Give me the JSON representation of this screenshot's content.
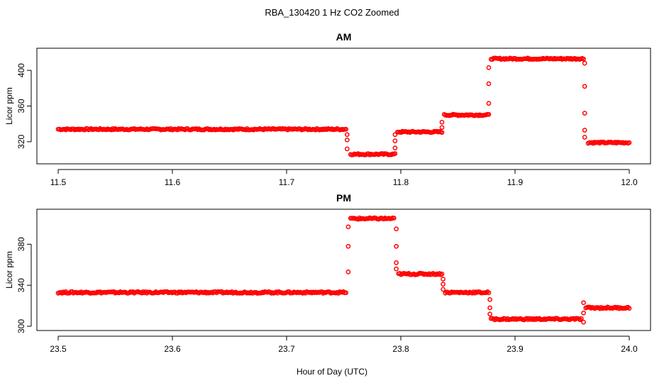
{
  "figure": {
    "title": "RBA_130420  1 Hz CO2 Zoomed",
    "xlabel": "Hour of Day (UTC)"
  },
  "chart_data": [
    {
      "type": "scatter",
      "title": "AM",
      "xlabel": "",
      "ylabel": "Licor ppm",
      "marker": "open-circle",
      "color": "#ff0000",
      "xlim": [
        11.5,
        12.0
      ],
      "ylim": [
        300,
        420
      ],
      "xticks": [
        11.5,
        11.6,
        11.7,
        11.8,
        11.9,
        12.0
      ],
      "xtick_labels": [
        "11.5",
        "11.6",
        "11.7",
        "11.8",
        "11.9",
        "12.0"
      ],
      "yticks": [
        320,
        360,
        400
      ],
      "ytick_labels": [
        "320",
        "360",
        "400"
      ],
      "levels": [
        {
          "x_start": 11.5,
          "x_end": 11.752,
          "y": 334
        },
        {
          "x_start": 11.756,
          "x_end": 11.795,
          "y": 306
        },
        {
          "x_start": 11.797,
          "x_end": 11.836,
          "y": 331
        },
        {
          "x_start": 11.838,
          "x_end": 11.877,
          "y": 350
        },
        {
          "x_start": 11.879,
          "x_end": 11.96,
          "y": 413
        },
        {
          "x_start": 11.964,
          "x_end": 12.0,
          "y": 319
        }
      ],
      "transitions": [
        {
          "x": 11.753,
          "y": [
            328,
            322,
            312
          ]
        },
        {
          "x": 11.795,
          "y": [
            313,
            321,
            328
          ]
        },
        {
          "x": 11.836,
          "y": [
            336,
            342
          ]
        },
        {
          "x": 11.877,
          "y": [
            363,
            385,
            403
          ]
        },
        {
          "x": 11.961,
          "y": [
            408,
            382,
            352,
            333,
            325
          ]
        }
      ]
    },
    {
      "type": "scatter",
      "title": "PM",
      "xlabel": "",
      "ylabel": "Licor ppm",
      "marker": "open-circle",
      "color": "#ff0000",
      "xlim": [
        23.5,
        24.0
      ],
      "ylim": [
        300,
        410
      ],
      "xticks": [
        23.5,
        23.6,
        23.7,
        23.8,
        23.9,
        24.0
      ],
      "xtick_labels": [
        "23.5",
        "23.6",
        "23.7",
        "23.8",
        "23.9",
        "24.0"
      ],
      "yticks": [
        300,
        340,
        380
      ],
      "ytick_labels": [
        "300",
        "340",
        "380"
      ],
      "levels": [
        {
          "x_start": 23.5,
          "x_end": 23.752,
          "y": 333
        },
        {
          "x_start": 23.756,
          "x_end": 23.794,
          "y": 405
        },
        {
          "x_start": 23.798,
          "x_end": 23.836,
          "y": 351
        },
        {
          "x_start": 23.839,
          "x_end": 23.877,
          "y": 333
        },
        {
          "x_start": 23.879,
          "x_end": 23.958,
          "y": 307
        },
        {
          "x_start": 23.962,
          "x_end": 24.0,
          "y": 318
        }
      ],
      "transitions": [
        {
          "x": 23.754,
          "y": [
            353,
            378,
            397
          ]
        },
        {
          "x": 23.796,
          "y": [
            395,
            378,
            362,
            356
          ]
        },
        {
          "x": 23.837,
          "y": [
            346,
            341,
            336
          ]
        },
        {
          "x": 23.878,
          "y": [
            326,
            318,
            312
          ]
        },
        {
          "x": 23.96,
          "y": [
            304,
            313,
            323
          ]
        }
      ]
    }
  ]
}
